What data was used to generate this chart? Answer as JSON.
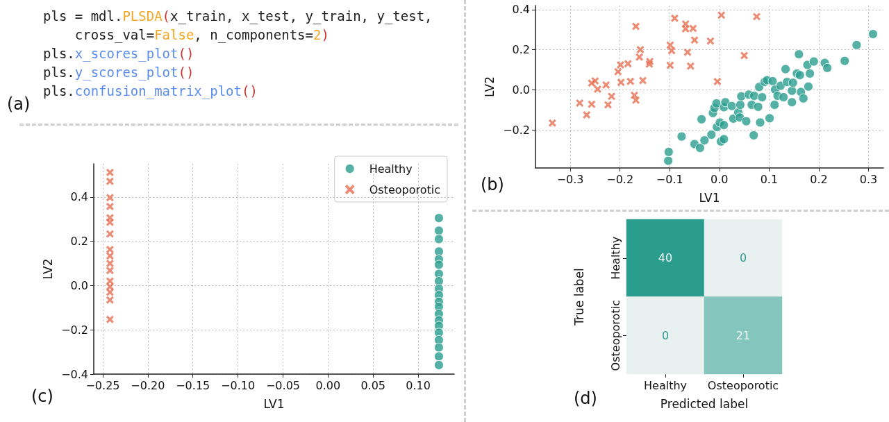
{
  "chart_data": [
    {
      "type": "other",
      "annotations": [
        "pls = mdl.PLSDA(x_train, x_test, y_train, y_test,",
        "    cross_val=False, n_components=2)",
        "pls.x_scores_plot()",
        "pls.y_scores_plot()",
        "pls.confusion_matrix_plot()",
        "(a)"
      ]
    },
    {
      "type": "scatter",
      "xlabel": "LV1",
      "ylabel": "LV2",
      "annotations": [
        "(b)"
      ],
      "grid": true,
      "legend": false,
      "xlim": [
        -0.37,
        0.33
      ],
      "ylim": [
        -0.39,
        0.42
      ],
      "xticks": [
        {
          "value": -0.3,
          "label": "−0.3"
        },
        {
          "value": -0.2,
          "label": "−0.2"
        },
        {
          "value": -0.1,
          "label": "−0.1"
        },
        {
          "value": 0,
          "label": "0.0"
        },
        {
          "value": 0.1,
          "label": "0.1"
        },
        {
          "value": 0.2,
          "label": "0.2"
        },
        {
          "value": 0.3,
          "label": "0.3"
        }
      ],
      "yticks": [
        {
          "value": -0.2,
          "label": "−0.2"
        },
        {
          "value": 0,
          "label": "0.0"
        },
        {
          "value": 0.2,
          "label": "0.2"
        },
        {
          "value": 0.4,
          "label": "0.4"
        }
      ],
      "series": [
        {
          "color": "#2a9d8f",
          "marker": "circle",
          "x": [
            -0.103,
            -0.102,
            -0.076,
            -0.05,
            -0.039,
            -0.03,
            -0.016,
            0.003,
            0.009,
            -0.005,
            -0.036,
            0.001,
            0.009,
            -0.013,
            -0.01,
            -0.006,
            0.009,
            0.012,
            0.025,
            0.028,
            0.038,
            0.041,
            0.054,
            0.042,
            0.044,
            0.059,
            0.065,
            0.078,
            0.069,
            0.082,
            0.07,
            0.08,
            0.086,
            0.091,
            0.096,
            0.101,
            0.107,
            0.112,
            0.111,
            0.117,
            0.123,
            0.129,
            0.133,
            0.136,
            0.146,
            0.146,
            0.148,
            0.156,
            0.16,
            0.162,
            0.164,
            0.169,
            0.177,
            0.182,
            0.179,
            0.19,
            0.212,
            0.217,
            0.252,
            0.276,
            0.309
          ],
          "values": [
            -0.354,
            -0.31,
            -0.233,
            -0.271,
            -0.29,
            -0.252,
            -0.224,
            -0.258,
            -0.246,
            -0.186,
            -0.147,
            -0.163,
            -0.176,
            -0.116,
            -0.091,
            -0.068,
            -0.087,
            -0.062,
            -0.081,
            -0.144,
            -0.113,
            -0.138,
            -0.157,
            -0.075,
            -0.033,
            -0.024,
            -0.075,
            -0.085,
            -0.227,
            -0.163,
            -0.03,
            0.014,
            -0.037,
            0.039,
            0.048,
            -0.142,
            0.043,
            0.001,
            -0.075,
            -0.03,
            0.02,
            -0.037,
            0.103,
            0.039,
            -0.005,
            -0.062,
            0.035,
            0.081,
            0.177,
            0.073,
            -0.011,
            -0.043,
            0.124,
            0.081,
            0.016,
            0.141,
            0.134,
            0.109,
            0.144,
            0.223,
            0.278
          ]
        },
        {
          "color": "#e76f51",
          "marker": "cross",
          "x": [
            -0.336,
            -0.281,
            -0.267,
            -0.257,
            -0.257,
            -0.25,
            -0.245,
            -0.228,
            -0.217,
            -0.224,
            -0.204,
            -0.199,
            -0.198,
            -0.184,
            -0.179,
            -0.171,
            -0.168,
            -0.168,
            -0.161,
            -0.159,
            -0.154,
            -0.141,
            -0.14,
            -0.099,
            -0.096,
            -0.099,
            -0.09,
            -0.068,
            -0.068,
            -0.053,
            -0.064,
            -0.05,
            -0.058,
            -0.018,
            -0.004,
            0.004,
            0.05,
            0.075
          ],
          "values": [
            -0.166,
            -0.066,
            -0.125,
            -0.072,
            0.033,
            0.044,
            0.003,
            0.024,
            -0.033,
            -0.075,
            0.09,
            0.124,
            0.037,
            0.13,
            0.042,
            -0.027,
            -0.052,
            0.316,
            0.163,
            0.2,
            0.046,
            0.128,
            0.141,
            0.223,
            0.195,
            0.122,
            0.357,
            0.328,
            0.304,
            0.306,
            0.187,
            0.248,
            0.118,
            0.243,
            0.041,
            0.372,
            0.171,
            0.365
          ]
        }
      ]
    },
    {
      "type": "scatter",
      "xlabel": "LV1",
      "ylabel": "LV2",
      "annotations": [
        "(c)"
      ],
      "grid": true,
      "legend": "top right",
      "xlim": [
        -0.26,
        0.14
      ],
      "ylim": [
        -0.4,
        0.55
      ],
      "xticks": [
        {
          "value": -0.25,
          "label": "−0.25"
        },
        {
          "value": -0.2,
          "label": "−0.20"
        },
        {
          "value": -0.15,
          "label": "−0.15"
        },
        {
          "value": -0.1,
          "label": "−0.10"
        },
        {
          "value": -0.05,
          "label": "−0.05"
        },
        {
          "value": 0,
          "label": "0.00"
        },
        {
          "value": 0.05,
          "label": "0.05"
        },
        {
          "value": 0.1,
          "label": "0.10"
        }
      ],
      "yticks": [
        {
          "value": -0.4,
          "label": "−0.4"
        },
        {
          "value": -0.2,
          "label": "−0.2"
        },
        {
          "value": 0,
          "label": "0.0"
        },
        {
          "value": 0.2,
          "label": "0.2"
        },
        {
          "value": 0.4,
          "label": "0.4"
        }
      ],
      "series": [
        {
          "name": "Healthy",
          "color": "#2a9d8f",
          "marker": "circle",
          "x": [
            0.123,
            0.123,
            0.123,
            0.123,
            0.123,
            0.123,
            0.123,
            0.123,
            0.123,
            0.123,
            0.123,
            0.123,
            0.123,
            0.123,
            0.123,
            0.123,
            0.123,
            0.123,
            0.123,
            0.123
          ],
          "values": [
            0.305,
            0.248,
            0.21,
            0.154,
            0.119,
            0.094,
            0.053,
            0.02,
            -0.014,
            -0.043,
            -0.073,
            -0.096,
            -0.128,
            -0.157,
            -0.182,
            -0.213,
            -0.246,
            -0.28,
            -0.32,
            -0.359
          ]
        },
        {
          "name": "Osteoporotic",
          "color": "#e76f51",
          "marker": "cross",
          "x": [
            -0.242,
            -0.242,
            -0.242,
            -0.242,
            -0.242,
            -0.242,
            -0.242,
            -0.242,
            -0.242,
            -0.242,
            -0.242,
            -0.242,
            -0.242,
            -0.242,
            -0.242,
            -0.242
          ],
          "values": [
            0.511,
            0.471,
            0.397,
            0.357,
            0.306,
            0.286,
            0.233,
            0.163,
            0.134,
            0.1,
            0.068,
            0.02,
            -0.005,
            -0.03,
            -0.065,
            -0.153
          ]
        }
      ]
    },
    {
      "type": "heatmap",
      "xlabel": "Predicted label",
      "ylabel": "True label",
      "annotations": [
        "(d)"
      ],
      "data_labels": true,
      "categories": [
        "Healthy",
        "Osteoporotic"
      ],
      "y_categories": [
        "Healthy",
        "Osteoporotic"
      ],
      "cells": [
        [
          40,
          0
        ],
        [
          0,
          21
        ]
      ],
      "colors": [
        "#e8f1f0",
        "#2a9d8f"
      ]
    }
  ]
}
